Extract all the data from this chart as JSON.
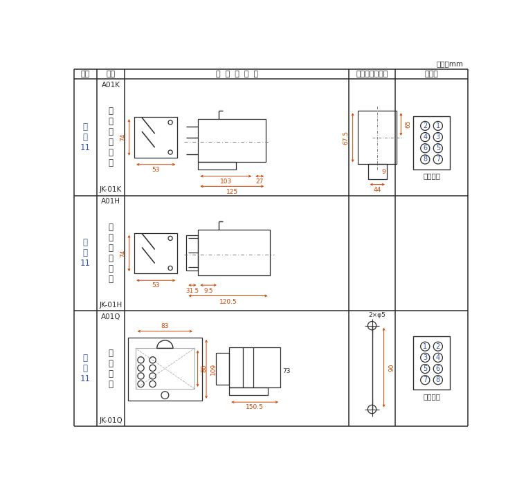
{
  "background": "#ffffff",
  "line_color": "#2b2b2b",
  "blue_color": "#3355aa",
  "dim_color": "#cc4400",
  "fig_w": 760,
  "fig_h": 714,
  "C0": 15,
  "C1": 58,
  "C2": 110,
  "C3": 528,
  "C4": 614,
  "C5": 750,
  "R0": 695,
  "R1": 677,
  "R2": 458,
  "R3": 242,
  "R4": 25,
  "unit_label": "单位：mm",
  "headers": [
    "图号",
    "结构",
    "外  形  尺  寸  图",
    "安装开孔尺寸图",
    "端子图"
  ],
  "rows": [
    {
      "fig": "附\n图\n11",
      "code": "A01K",
      "name": "嵌\n入\n式\n后\n接\n线",
      "jk": "JK-01K"
    },
    {
      "fig": "附\n图\n11",
      "code": "A01H",
      "name": "凸\n出\n板\n后\n接\n线",
      "jk": "JK-01H"
    },
    {
      "fig": "附\n图\n11",
      "code": "A01Q",
      "name": "板\n前\n接\n线",
      "jk": "JK-01Q"
    }
  ]
}
